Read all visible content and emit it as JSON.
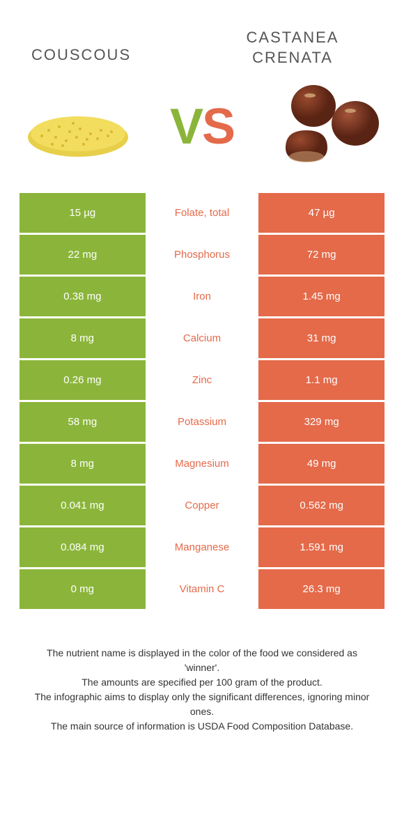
{
  "colors": {
    "left": "#8bb53a",
    "right": "#e46a4a",
    "midBg": "#ffffff",
    "text": "#ffffff",
    "winnerText": "#e46a4a"
  },
  "header": {
    "left": "Couscous",
    "right": "Castanea crenata",
    "vsV": "V",
    "vsS": "S"
  },
  "rows": [
    {
      "left": "15 µg",
      "label": "Folate, total",
      "right": "47 µg",
      "winner": "right"
    },
    {
      "left": "22 mg",
      "label": "Phosphorus",
      "right": "72 mg",
      "winner": "right"
    },
    {
      "left": "0.38 mg",
      "label": "Iron",
      "right": "1.45 mg",
      "winner": "right"
    },
    {
      "left": "8 mg",
      "label": "Calcium",
      "right": "31 mg",
      "winner": "right"
    },
    {
      "left": "0.26 mg",
      "label": "Zinc",
      "right": "1.1 mg",
      "winner": "right"
    },
    {
      "left": "58 mg",
      "label": "Potassium",
      "right": "329 mg",
      "winner": "right"
    },
    {
      "left": "8 mg",
      "label": "Magnesium",
      "right": "49 mg",
      "winner": "right"
    },
    {
      "left": "0.041 mg",
      "label": "Copper",
      "right": "0.562 mg",
      "winner": "right"
    },
    {
      "left": "0.084 mg",
      "label": "Manganese",
      "right": "1.591 mg",
      "winner": "right"
    },
    {
      "left": "0 mg",
      "label": "Vitamin C",
      "right": "26.3 mg",
      "winner": "right"
    }
  ],
  "footer": {
    "l1": "The nutrient name is displayed in the color of the food we considered as 'winner'.",
    "l2": "The amounts are specified per 100 gram of the product.",
    "l3": "The infographic aims to display only the significant differences, ignoring minor ones.",
    "l4": "The main source of information is USDA Food Composition Database."
  }
}
